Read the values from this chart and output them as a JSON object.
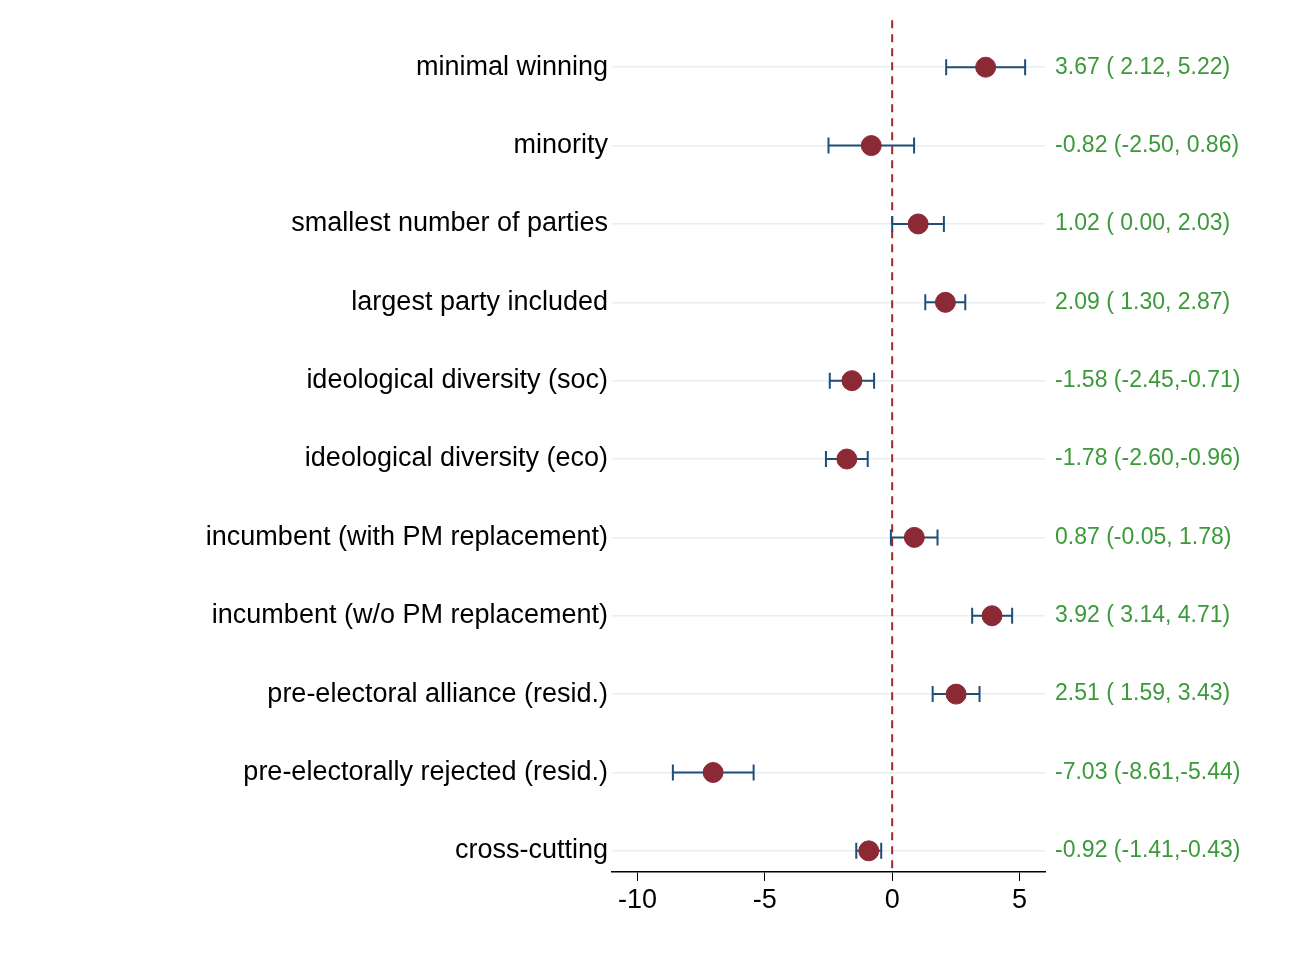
{
  "chart_data": {
    "type": "scatter",
    "orientation": "horizontal",
    "categories": [
      "minimal winning",
      "minority",
      "smallest number of parties",
      "largest party included",
      "ideological diversity (soc)",
      "ideological diversity (eco)",
      "incumbent (with PM replacement)",
      "incumbent (w/o PM replacement)",
      "pre-electoral alliance (resid.)",
      "pre-electorally rejected (resid.)",
      "cross-cutting"
    ],
    "values": [
      3.67,
      -0.82,
      1.02,
      2.09,
      -1.58,
      -1.78,
      0.87,
      3.92,
      2.51,
      -7.03,
      -0.92
    ],
    "errors": [
      [
        2.12,
        5.22
      ],
      [
        -2.5,
        0.86
      ],
      [
        0.0,
        2.03
      ],
      [
        1.3,
        2.87
      ],
      [
        -2.45,
        -0.71
      ],
      [
        -2.6,
        -0.96
      ],
      [
        -0.05,
        1.78
      ],
      [
        3.14,
        4.71
      ],
      [
        1.59,
        3.43
      ],
      [
        -8.61,
        -5.44
      ],
      [
        -1.41,
        -0.43
      ]
    ],
    "value_labels": [
      "3.67 ( 2.12, 5.22)",
      "-0.82 (-2.50, 0.86)",
      "1.02 ( 0.00, 2.03)",
      "2.09 ( 1.30, 2.87)",
      "-1.58 (-2.45,-0.71)",
      "-1.78 (-2.60,-0.96)",
      "0.87 (-0.05, 1.78)",
      "3.92 ( 3.14, 4.71)",
      "2.51 ( 1.59, 3.43)",
      "-7.03 (-8.61,-5.44)",
      "-0.92 (-1.41,-0.43)"
    ],
    "color": "#8b2a35",
    "xlim": [
      -11,
      6
    ],
    "xticks": [
      -10,
      -5,
      0,
      5
    ],
    "ref_lines": [
      {
        "axis": "x",
        "value": 0,
        "color": "#a0282d",
        "line_style": "dashed"
      }
    ],
    "grid": "y",
    "marker": "circle",
    "legend": false
  }
}
